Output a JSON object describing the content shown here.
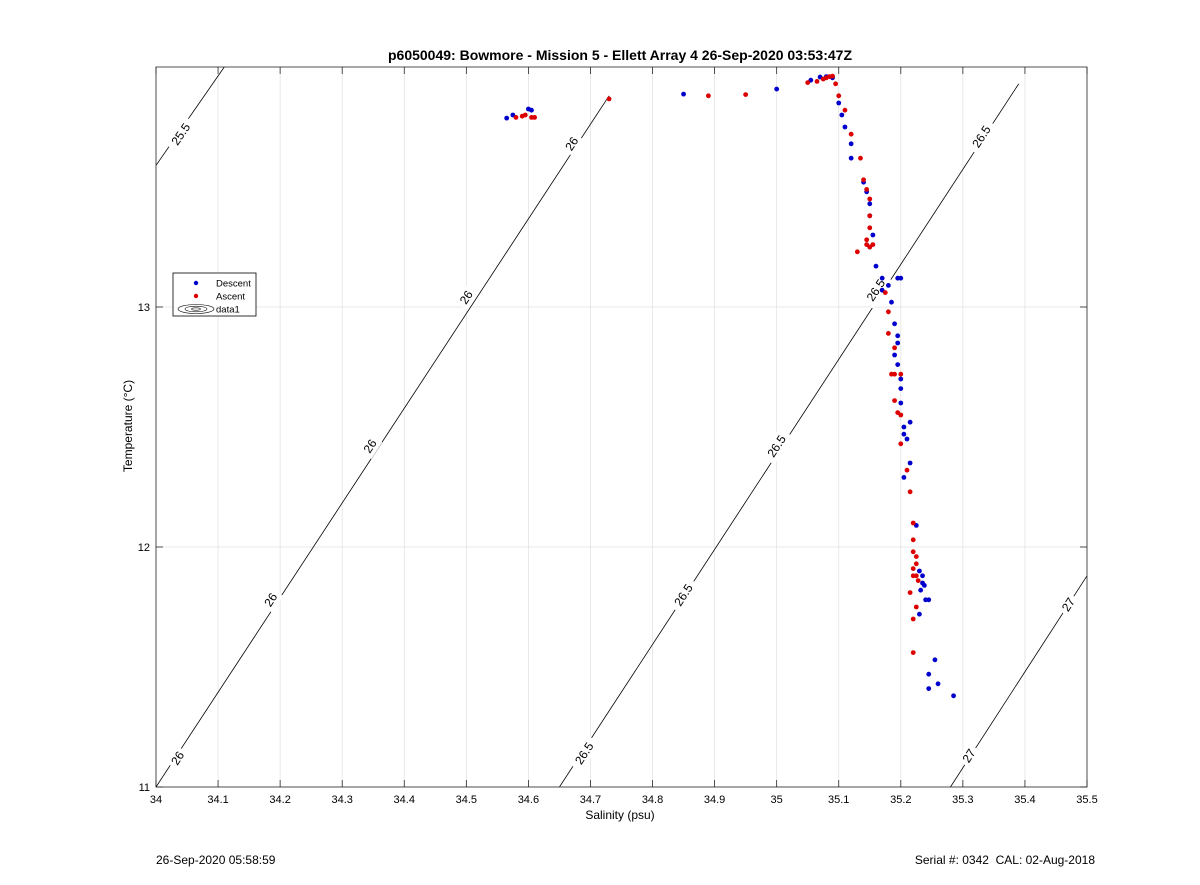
{
  "chart_data": {
    "type": "scatter",
    "title": "p6050049: Bowmore - Mission 5 - Ellett Array 4 26-Sep-2020 03:53:47Z",
    "xlabel": "Salinity (psu)",
    "ylabel": "Temperature (°C)",
    "xlim": [
      34,
      35.5
    ],
    "ylim": [
      11,
      14
    ],
    "x_ticks": [
      34,
      34.1,
      34.2,
      34.3,
      34.4,
      34.5,
      34.6,
      34.7,
      34.8,
      34.9,
      35,
      35.1,
      35.2,
      35.3,
      35.4,
      35.5
    ],
    "x_tick_labels": [
      "34",
      "34.1",
      "34.2",
      "34.3",
      "34.4",
      "34.5",
      "34.6",
      "34.7",
      "34.8",
      "34.9",
      "35",
      "35.1",
      "35.2",
      "35.3",
      "35.4",
      "35.5"
    ],
    "y_ticks": [
      11,
      12,
      13
    ],
    "y_tick_labels": [
      "11",
      "12",
      "13"
    ],
    "grid": true,
    "legend": {
      "placement": "left-middle",
      "entries": [
        "Descent",
        "Ascent",
        "data1"
      ]
    },
    "series": [
      {
        "name": "Descent",
        "color": "#0000cc",
        "points": [
          [
            34.565,
            13.787
          ],
          [
            34.575,
            13.8
          ],
          [
            34.6,
            13.825
          ],
          [
            34.605,
            13.82
          ],
          [
            34.85,
            13.887
          ],
          [
            35.0,
            13.908
          ],
          [
            35.055,
            13.945
          ],
          [
            35.07,
            13.958
          ],
          [
            35.08,
            13.96
          ],
          [
            35.09,
            13.955
          ],
          [
            35.1,
            13.85
          ],
          [
            35.105,
            13.8
          ],
          [
            35.11,
            13.75
          ],
          [
            35.12,
            13.68
          ],
          [
            35.12,
            13.62
          ],
          [
            35.14,
            13.52
          ],
          [
            35.145,
            13.48
          ],
          [
            35.15,
            13.43
          ],
          [
            35.15,
            13.38
          ],
          [
            35.155,
            13.3
          ],
          [
            35.15,
            13.25
          ],
          [
            35.16,
            13.17
          ],
          [
            35.17,
            13.12
          ],
          [
            35.18,
            13.09
          ],
          [
            35.195,
            13.12
          ],
          [
            35.2,
            13.12
          ],
          [
            35.17,
            13.07
          ],
          [
            35.185,
            13.02
          ],
          [
            35.19,
            12.93
          ],
          [
            35.195,
            12.88
          ],
          [
            35.195,
            12.85
          ],
          [
            35.19,
            12.8
          ],
          [
            35.195,
            12.76
          ],
          [
            35.2,
            12.7
          ],
          [
            35.2,
            12.66
          ],
          [
            35.2,
            12.6
          ],
          [
            35.205,
            12.5
          ],
          [
            35.205,
            12.47
          ],
          [
            35.21,
            12.45
          ],
          [
            35.215,
            12.52
          ],
          [
            35.215,
            12.35
          ],
          [
            35.205,
            12.29
          ],
          [
            35.225,
            12.09
          ],
          [
            35.23,
            11.9
          ],
          [
            35.235,
            11.88
          ],
          [
            35.235,
            11.85
          ],
          [
            35.232,
            11.82
          ],
          [
            35.238,
            11.84
          ],
          [
            35.24,
            11.78
          ],
          [
            35.245,
            11.78
          ],
          [
            35.23,
            11.72
          ],
          [
            35.255,
            11.53
          ],
          [
            35.245,
            11.47
          ],
          [
            35.26,
            11.43
          ],
          [
            35.245,
            11.41
          ],
          [
            35.285,
            11.38
          ]
        ]
      },
      {
        "name": "Ascent",
        "color": "#dd0000",
        "points": [
          [
            34.58,
            13.79
          ],
          [
            34.59,
            13.795
          ],
          [
            34.595,
            13.8
          ],
          [
            34.61,
            13.79
          ],
          [
            34.605,
            13.79
          ],
          [
            34.73,
            13.867
          ],
          [
            34.89,
            13.88
          ],
          [
            34.95,
            13.885
          ],
          [
            35.05,
            13.935
          ],
          [
            35.065,
            13.94
          ],
          [
            35.075,
            13.95
          ],
          [
            35.08,
            13.955
          ],
          [
            35.085,
            13.96
          ],
          [
            35.09,
            13.962
          ],
          [
            35.095,
            13.93
          ],
          [
            35.1,
            13.88
          ],
          [
            35.11,
            13.82
          ],
          [
            35.12,
            13.72
          ],
          [
            35.135,
            13.62
          ],
          [
            35.14,
            13.53
          ],
          [
            35.145,
            13.49
          ],
          [
            35.15,
            13.45
          ],
          [
            35.15,
            13.38
          ],
          [
            35.15,
            13.33
          ],
          [
            35.145,
            13.28
          ],
          [
            35.15,
            13.25
          ],
          [
            35.155,
            13.26
          ],
          [
            35.145,
            13.26
          ],
          [
            35.13,
            13.23
          ],
          [
            35.175,
            13.06
          ],
          [
            35.18,
            12.98
          ],
          [
            35.18,
            12.89
          ],
          [
            35.19,
            12.83
          ],
          [
            35.185,
            12.72
          ],
          [
            35.19,
            12.72
          ],
          [
            35.2,
            12.72
          ],
          [
            35.19,
            12.61
          ],
          [
            35.195,
            12.56
          ],
          [
            35.2,
            12.55
          ],
          [
            35.2,
            12.43
          ],
          [
            35.21,
            12.32
          ],
          [
            35.215,
            12.23
          ],
          [
            35.22,
            12.1
          ],
          [
            35.22,
            12.03
          ],
          [
            35.22,
            11.98
          ],
          [
            35.225,
            11.96
          ],
          [
            35.225,
            11.93
          ],
          [
            35.22,
            11.91
          ],
          [
            35.225,
            11.88
          ],
          [
            35.22,
            11.88
          ],
          [
            35.228,
            11.86
          ],
          [
            35.215,
            11.81
          ],
          [
            35.225,
            11.75
          ],
          [
            35.22,
            11.7
          ],
          [
            35.22,
            11.56
          ]
        ]
      }
    ],
    "contours": [
      {
        "value": "25.5",
        "line": [
          [
            34.0,
            13.59
          ],
          [
            34.11,
            14.0
          ]
        ],
        "labels": [
          [
            34.04,
            13.72
          ]
        ]
      },
      {
        "value": "26",
        "line": [
          [
            34.0,
            11.0
          ],
          [
            34.73,
            13.88
          ]
        ],
        "labels": [
          [
            34.035,
            11.12
          ],
          [
            34.185,
            11.78
          ],
          [
            34.345,
            12.42
          ],
          [
            34.5,
            13.04
          ],
          [
            34.67,
            13.68
          ]
        ]
      },
      {
        "value": "26.5",
        "line": [
          [
            34.65,
            11.0
          ],
          [
            35.39,
            13.93
          ]
        ],
        "labels": [
          [
            34.69,
            11.14
          ],
          [
            34.85,
            11.8
          ],
          [
            35.0,
            12.42
          ],
          [
            35.16,
            13.07
          ],
          [
            35.33,
            13.71
          ]
        ]
      },
      {
        "value": "27",
        "line": [
          [
            35.28,
            11.0
          ],
          [
            35.5,
            11.88
          ]
        ],
        "labels": [
          [
            35.31,
            11.13
          ],
          [
            35.47,
            11.76
          ]
        ]
      }
    ]
  },
  "footer": {
    "timestamp": "26-Sep-2020 05:58:59",
    "serial": "Serial #: 0342  CAL: 02-Aug-2018"
  }
}
